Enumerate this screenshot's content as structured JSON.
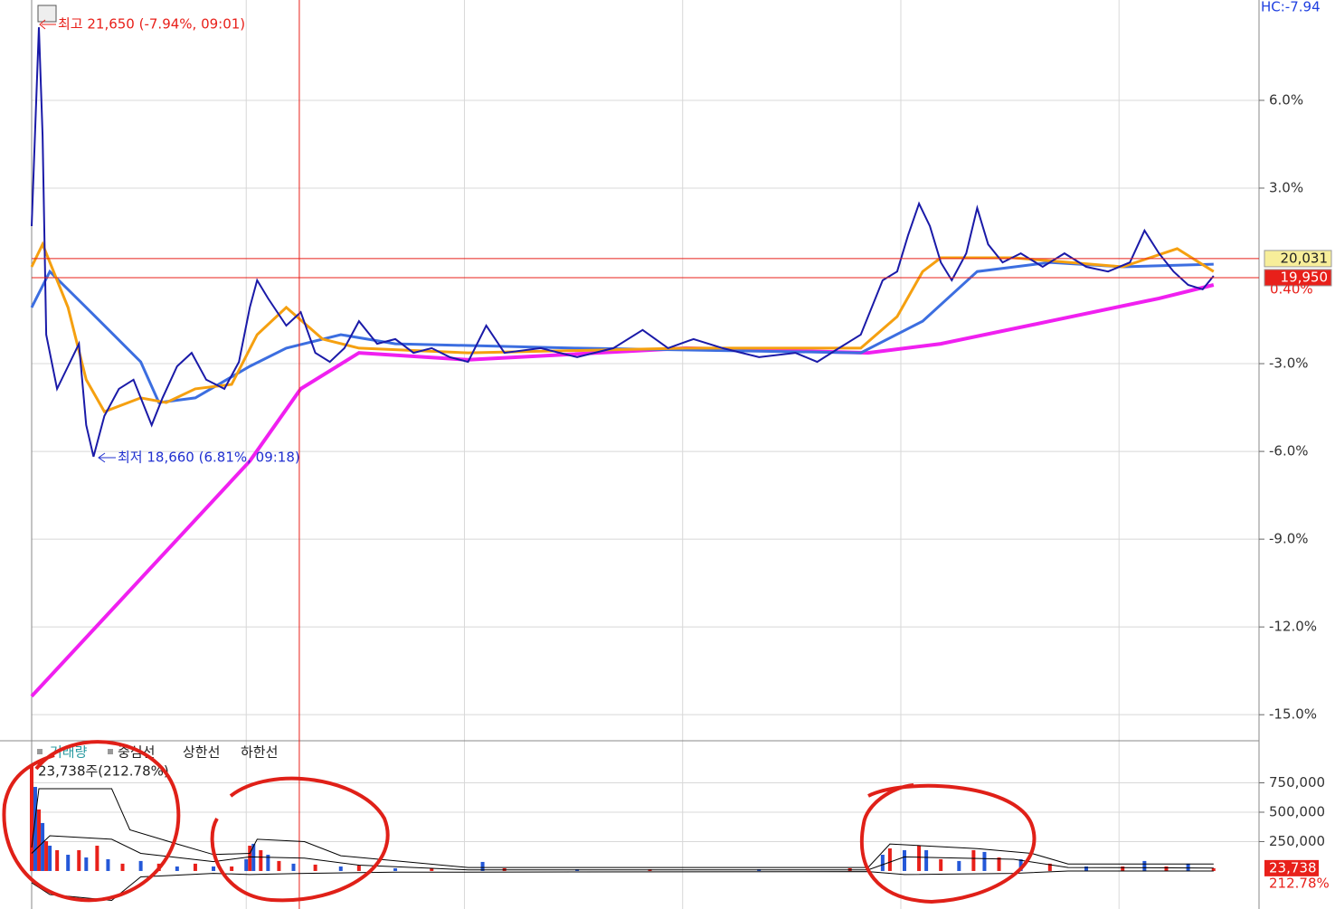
{
  "chart_data": [
    {
      "type": "line",
      "hc_label": "HC:-7.94",
      "high_label": "최고 21,650 (-7.94%, 09:01)",
      "low_label": "최저 18,660 (6.81%, 09:18)",
      "current_change": "0.40%",
      "xlim": [
        0,
        337
      ],
      "xticks": [
        59,
        119,
        179,
        239,
        299
      ],
      "ylim": [
        -15.86,
        9.43
      ],
      "yticks": [
        {
          "value": 6,
          "label": "6.0%"
        },
        {
          "value": 3,
          "label": "3.0%"
        },
        {
          "value": -3,
          "label": "-3.0%"
        },
        {
          "value": -6,
          "label": "-6.0%"
        },
        {
          "value": -9,
          "label": "-9.0%"
        },
        {
          "value": -12,
          "label": "-12.0%"
        },
        {
          "value": -15,
          "label": "-15.0%"
        }
      ],
      "grid": true,
      "crosshair_x": 73.6,
      "ref_lines": [
        {
          "value": 0.59,
          "label": "20,031",
          "color": "#f7ee9a"
        },
        {
          "value": -0.06,
          "label": "19,950",
          "color": "#e8201a"
        }
      ],
      "series": [
        {
          "color": "#1a1aa8",
          "x": [
            0,
            2,
            3,
            4,
            7,
            10,
            13,
            15,
            17,
            20,
            24,
            28,
            33,
            36,
            40,
            44,
            48,
            53,
            57,
            60,
            62,
            65,
            70,
            74,
            78,
            82,
            86,
            90,
            95,
            100,
            105,
            110,
            115,
            120,
            125,
            130,
            140,
            150,
            160,
            168,
            175,
            182,
            190,
            200,
            210,
            216,
            222,
            228,
            234,
            238,
            241,
            244,
            247,
            250,
            253,
            257,
            260,
            263,
            267,
            272,
            278,
            284,
            290,
            296,
            302,
            306,
            310,
            314,
            318,
            322,
            325
          ],
          "values": [
            1.7,
            8.5,
            4.79,
            -2.01,
            -3.86,
            -3.09,
            -2.32,
            -5.1,
            -6.18,
            -4.79,
            -3.86,
            -3.55,
            -5.1,
            -4.17,
            -3.09,
            -2.63,
            -3.55,
            -3.86,
            -2.94,
            -1.08,
            -0.15,
            -0.77,
            -1.7,
            -1.24,
            -2.63,
            -2.94,
            -2.47,
            -1.55,
            -2.32,
            -2.16,
            -2.63,
            -2.47,
            -2.78,
            -2.94,
            -1.7,
            -2.63,
            -2.47,
            -2.78,
            -2.47,
            -1.85,
            -2.47,
            -2.16,
            -2.47,
            -2.78,
            -2.63,
            -2.94,
            -2.47,
            -2.01,
            -0.15,
            0.15,
            1.39,
            2.47,
            1.7,
            0.46,
            -0.15,
            0.77,
            2.32,
            1.08,
            0.46,
            0.77,
            0.31,
            0.77,
            0.31,
            0.15,
            0.46,
            1.55,
            0.77,
            0.15,
            -0.31,
            -0.46,
            0.0
          ]
        },
        {
          "color": "#f5a010",
          "x": [
            0,
            3,
            10,
            15,
            20,
            30,
            37,
            45,
            55,
            62,
            70,
            80,
            90,
            120,
            180,
            228,
            238,
            245,
            250,
            270,
            300,
            315,
            325
          ],
          "values": [
            0.31,
            1.08,
            -1.08,
            -3.55,
            -4.64,
            -4.17,
            -4.33,
            -3.86,
            -3.71,
            -2.01,
            -1.08,
            -2.16,
            -2.47,
            -2.63,
            -2.47,
            -2.47,
            -1.39,
            0.15,
            0.62,
            0.62,
            0.31,
            0.93,
            0.15
          ]
        },
        {
          "color": "#3c6ee0",
          "x": [
            0,
            5,
            15,
            30,
            35,
            45,
            60,
            70,
            85,
            100,
            150,
            228,
            245,
            260,
            280,
            300,
            325
          ],
          "values": [
            -1.08,
            0.15,
            -1.08,
            -2.94,
            -4.33,
            -4.17,
            -3.09,
            -2.47,
            -2.01,
            -2.32,
            -2.47,
            -2.63,
            -1.55,
            0.15,
            0.46,
            0.31,
            0.4
          ]
        },
        {
          "color": "#f020f0",
          "x": [
            0,
            30,
            60,
            74,
            90,
            120,
            180,
            230,
            250,
            280,
            310,
            325
          ],
          "values": [
            -14.37,
            -10.35,
            -6.33,
            -3.86,
            -2.63,
            -2.87,
            -2.47,
            -2.63,
            -2.32,
            -1.55,
            -0.77,
            -0.31
          ]
        }
      ]
    },
    {
      "type": "bar",
      "legend": [
        "거래량",
        "중심선",
        "상한선",
        "하한선"
      ],
      "info": "23,738주(212.78%)",
      "last_label": "23,738",
      "ratio_label": "212.78%",
      "xlim": [
        0,
        337
      ],
      "ylim": [
        -285000,
        1100000
      ],
      "yticks": [
        {
          "value": 750000,
          "label": "750,000"
        },
        {
          "value": 500000,
          "label": "500,000"
        },
        {
          "value": 250000,
          "label": "250,000"
        }
      ],
      "x": [
        0,
        1,
        2,
        3,
        4,
        5,
        7,
        10,
        13,
        15,
        18,
        21,
        25,
        30,
        35,
        40,
        45,
        50,
        55,
        59,
        60,
        61,
        63,
        65,
        68,
        72,
        78,
        85,
        90,
        100,
        110,
        124,
        130,
        150,
        170,
        200,
        225,
        234,
        236,
        240,
        244,
        246,
        250,
        255,
        259,
        262,
        266,
        272,
        280,
        290,
        300,
        306,
        312,
        318,
        325
      ],
      "values": [
        908000,
        715000,
        523000,
        408000,
        254000,
        215000,
        177000,
        138000,
        177000,
        115000,
        215000,
        100000,
        62000,
        85000,
        62000,
        38000,
        62000,
        38000,
        38000,
        100000,
        215000,
        231000,
        177000,
        138000,
        85000,
        62000,
        54000,
        38000,
        46000,
        23000,
        23000,
        77000,
        23000,
        15000,
        15000,
        15000,
        23000,
        138000,
        192000,
        177000,
        215000,
        177000,
        100000,
        85000,
        177000,
        162000,
        115000,
        100000,
        62000,
        38000,
        38000,
        85000,
        38000,
        62000,
        23738
      ],
      "colors": [
        "#e8201a",
        "#2458d8"
      ],
      "bands": [
        {
          "color": "#000000",
          "x": [
            0,
            5,
            22,
            30,
            50,
            60,
            75,
            90,
            120,
            230,
            240,
            270,
            285,
            325
          ],
          "values": [
            150000,
            300000,
            270000,
            150000,
            80000,
            120000,
            110000,
            50000,
            10000,
            10000,
            120000,
            100000,
            30000,
            25000
          ]
        },
        {
          "color": "#000000",
          "x": [
            0,
            2,
            22,
            27,
            40,
            50,
            60,
            62,
            75,
            85,
            120,
            230,
            236,
            260,
            275,
            285,
            325
          ],
          "values": [
            200000,
            700000,
            700000,
            350000,
            230000,
            140000,
            150000,
            270000,
            250000,
            130000,
            30000,
            30000,
            230000,
            190000,
            150000,
            60000,
            60000
          ]
        },
        {
          "color": "#000000",
          "x": [
            0,
            5,
            22,
            30,
            50,
            60,
            75,
            100,
            230,
            240,
            270,
            285,
            325
          ],
          "values": [
            -100000,
            -200000,
            -250000,
            -50000,
            -20000,
            -30000,
            -20000,
            -10000,
            -5000,
            -30000,
            -20000,
            0,
            0
          ]
        }
      ]
    }
  ]
}
